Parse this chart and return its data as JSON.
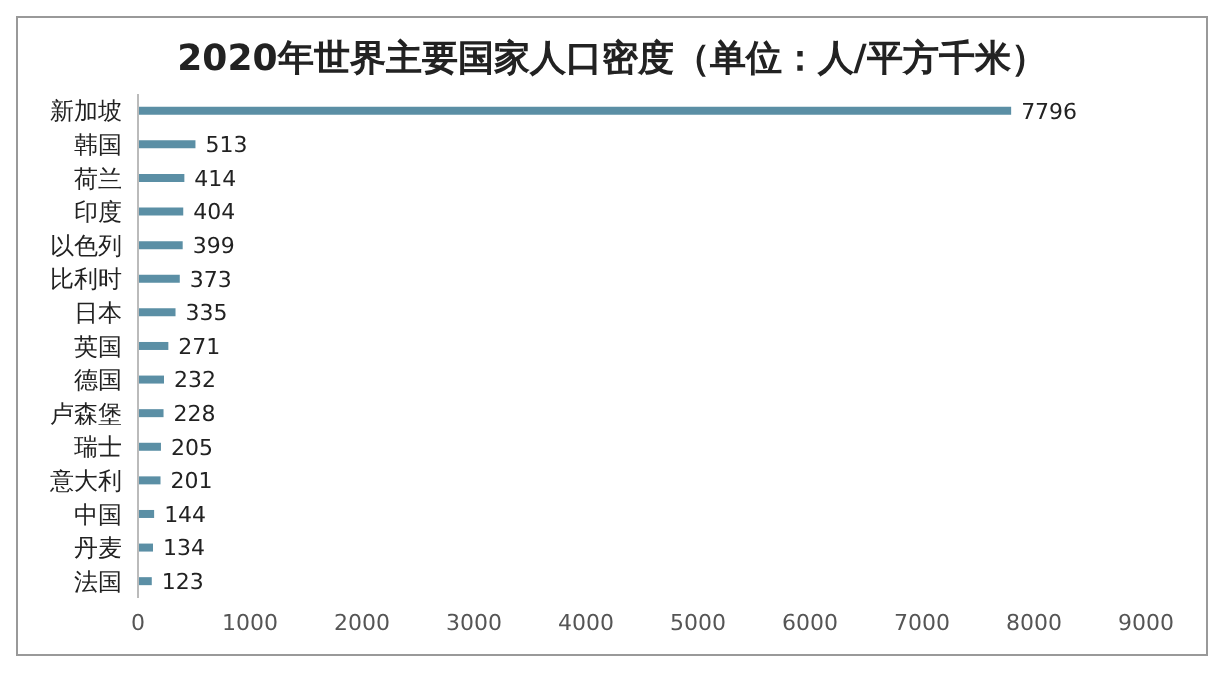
{
  "chart_data": {
    "type": "bar",
    "orientation": "horizontal",
    "title": "2020年世界主要国家人口密度（单位：人/平方千米）",
    "categories": [
      "新加坡",
      "韩国",
      "荷兰",
      "印度",
      "以色列",
      "比利时",
      "日本",
      "英国",
      "德国",
      "卢森堡",
      "瑞士",
      "意大利",
      "中国",
      "丹麦",
      "法国"
    ],
    "values": [
      7796,
      513,
      414,
      404,
      399,
      373,
      335,
      271,
      232,
      228,
      205,
      201,
      144,
      134,
      123
    ],
    "color": "#5b8fa5",
    "xlim": [
      0,
      9000
    ],
    "xticks": [
      0,
      1000,
      2000,
      3000,
      4000,
      5000,
      6000,
      7000,
      8000,
      9000
    ],
    "data_labels": true,
    "grid": false
  }
}
